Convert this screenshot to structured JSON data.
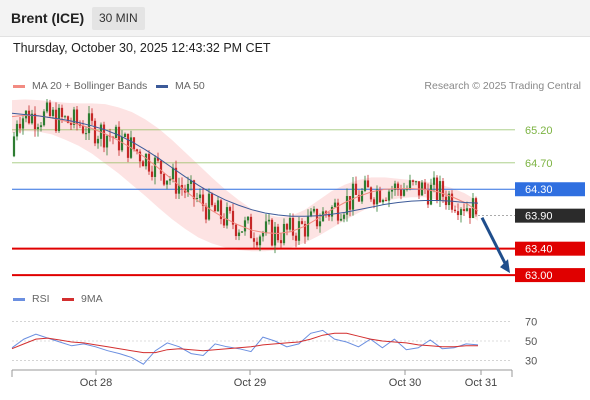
{
  "header": {
    "title": "Brent (ICE)",
    "interval": "30 MIN"
  },
  "timestamp": "Thursday, October 30, 2025 12:43:32 PM CET",
  "legend": {
    "ma20_label": "MA 20 + Bollinger Bands",
    "ma50_label": "MA 50",
    "copyright": "Research © 2025 Trading Central",
    "rsi_label": "RSI",
    "ma9_label": "9MA"
  },
  "colors": {
    "ma20": "#f28b82",
    "ma50": "#3c5a99",
    "bands": "#fde3e3",
    "up": "#2e7d32",
    "down": "#c62828",
    "target": "#7cb342",
    "pivot": "#2f6fe0",
    "support": "#e00000",
    "arrow": "#1f4e8c",
    "rsi": "#6b8fe0",
    "rsi_ma": "#d32f2f"
  },
  "chart_data": [
    {
      "type": "candlestick",
      "title": "",
      "x_labels": [
        "Oct 28",
        "Oct 29",
        "Oct 30",
        "Oct 31"
      ],
      "ylim": [
        62.85,
        65.5
      ],
      "levels": [
        {
          "value": 65.2,
          "label": "65.20",
          "kind": "resistance"
        },
        {
          "value": 64.7,
          "label": "64.70",
          "kind": "resistance"
        },
        {
          "value": 64.3,
          "label": "64.30",
          "kind": "pivot"
        },
        {
          "value": 63.9,
          "label": "63.90",
          "kind": "last"
        },
        {
          "value": 63.4,
          "label": "63.40",
          "kind": "support"
        },
        {
          "value": 63.0,
          "label": "63.00",
          "kind": "support"
        }
      ],
      "forecast_arrow": {
        "from": 63.9,
        "to": 63.0
      },
      "series": [
        {
          "name": "MA 20 + Bollinger Bands",
          "values": [
            65.4,
            65.42,
            65.41,
            65.38,
            65.33,
            65.28,
            65.22,
            65.14,
            65.04,
            64.92,
            64.78,
            64.62,
            64.45,
            64.28,
            64.12,
            63.98,
            63.86,
            63.76,
            63.68,
            63.64,
            63.63,
            63.66,
            63.74,
            63.86,
            63.99,
            64.1,
            64.19,
            64.26,
            64.3,
            64.31,
            64.31,
            64.3,
            64.26,
            64.19,
            64.1,
            63.97
          ]
        },
        {
          "name": "MA 50",
          "values": [
            65.45,
            65.43,
            65.41,
            65.38,
            65.35,
            65.31,
            65.26,
            65.2,
            65.12,
            65.02,
            64.9,
            64.77,
            64.63,
            64.49,
            64.36,
            64.24,
            64.14,
            64.06,
            63.99,
            63.94,
            63.91,
            63.89,
            63.89,
            63.9,
            63.92,
            63.95,
            63.99,
            64.03,
            64.07,
            64.1,
            64.12,
            64.13,
            64.13,
            64.12,
            64.1,
            64.09
          ]
        }
      ]
    },
    {
      "type": "line",
      "title": "",
      "ylim": [
        20,
        80
      ],
      "y_ticks": [
        70,
        50,
        30
      ],
      "x_labels": [
        "Oct 28",
        "Oct 29",
        "Oct 30",
        "Oct 31"
      ],
      "series": [
        {
          "name": "RSI",
          "values": [
            43,
            52,
            57,
            53,
            49,
            45,
            47,
            44,
            40,
            37,
            33,
            26,
            40,
            48,
            44,
            37,
            35,
            47,
            44,
            42,
            39,
            54,
            50,
            44,
            47,
            58,
            61,
            52,
            49,
            44,
            52,
            43,
            52,
            41,
            43,
            51,
            42,
            43,
            47,
            46
          ]
        },
        {
          "name": "9MA",
          "values": [
            42,
            47,
            52,
            53,
            51,
            49,
            48,
            46,
            44,
            42,
            40,
            38,
            38,
            41,
            42,
            41,
            40,
            41,
            42,
            43,
            44,
            46,
            47,
            48,
            49,
            52,
            56,
            58,
            58,
            55,
            52,
            50,
            49,
            48,
            46,
            45,
            44,
            44,
            45,
            45
          ]
        }
      ]
    }
  ]
}
